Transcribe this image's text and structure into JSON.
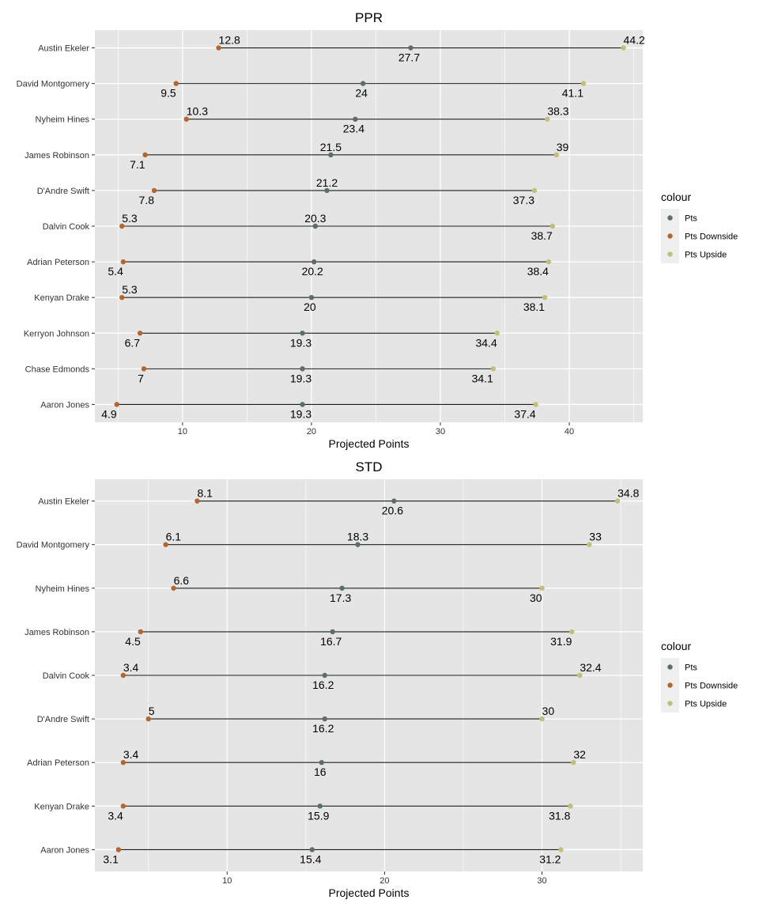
{
  "colors": {
    "panel_bg": "#e5e5e5",
    "grid": "#ffffff",
    "segment": "#1a1a1a",
    "pts": "#5b6e68",
    "downside": "#b5652f",
    "upside": "#c2bf7b",
    "legend_key_bg": "#efefef"
  },
  "chart_data": [
    {
      "type": "dumbbell",
      "title": "PPR",
      "xlabel": "Projected Points",
      "ylabel": "",
      "xlim": [
        3.2,
        45.7
      ],
      "xticks": [
        10,
        20,
        30,
        40
      ],
      "grid": true,
      "legend": {
        "title": "colour",
        "position": "right",
        "entries": [
          {
            "name": "Pts",
            "color_key": "pts"
          },
          {
            "name": "Pts Downside",
            "color_key": "downside"
          },
          {
            "name": "Pts Upside",
            "color_key": "upside"
          }
        ]
      },
      "categories": [
        "Austin Ekeler",
        "David Montgomery",
        "Nyheim Hines",
        "James Robinson",
        "D'Andre Swift",
        "Dalvin Cook",
        "Adrian Peterson",
        "Kenyan Drake",
        "Kerryon Johnson",
        "Chase Edmonds",
        "Aaron Jones"
      ],
      "pts": [
        27.7,
        24,
        23.4,
        21.5,
        21.2,
        20.3,
        20.2,
        20,
        19.3,
        19.3,
        19.3
      ],
      "downside": [
        12.8,
        9.5,
        10.3,
        7.1,
        7.8,
        5.3,
        5.4,
        5.3,
        6.7,
        7,
        4.9
      ],
      "upside": [
        44.2,
        41.1,
        38.3,
        39,
        37.3,
        38.7,
        38.4,
        38.1,
        34.4,
        34.1,
        37.4
      ],
      "label_pos": {
        "pts": [
          "below",
          "below",
          "below",
          "above",
          "above",
          "above",
          "below",
          "below",
          "below",
          "below",
          "below"
        ],
        "downside": [
          "above",
          "below",
          "above",
          "below",
          "below",
          "above",
          "below",
          "above",
          "below",
          "below",
          "below"
        ],
        "upside": [
          "above",
          "below",
          "above",
          "above",
          "below",
          "below",
          "below",
          "below",
          "below",
          "below",
          "below"
        ]
      }
    },
    {
      "type": "dumbbell",
      "title": "STD",
      "xlabel": "Projected Points",
      "ylabel": "",
      "xlim": [
        1.6,
        36.4
      ],
      "xticks": [
        10,
        20,
        30
      ],
      "grid": true,
      "legend": {
        "title": "colour",
        "position": "right",
        "entries": [
          {
            "name": "Pts",
            "color_key": "pts"
          },
          {
            "name": "Pts Downside",
            "color_key": "downside"
          },
          {
            "name": "Pts Upside",
            "color_key": "upside"
          }
        ]
      },
      "categories": [
        "Austin Ekeler",
        "David Montgomery",
        "Nyheim Hines",
        "James Robinson",
        "Dalvin Cook",
        "D'Andre Swift",
        "Adrian Peterson",
        "Kenyan Drake",
        "Aaron Jones"
      ],
      "pts": [
        20.6,
        18.3,
        17.3,
        16.7,
        16.2,
        16.2,
        16,
        15.9,
        15.4
      ],
      "downside": [
        8.1,
        6.1,
        6.6,
        4.5,
        3.4,
        5,
        3.4,
        3.4,
        3.1
      ],
      "upside": [
        34.8,
        33,
        30,
        31.9,
        32.4,
        30,
        32,
        31.8,
        31.2
      ],
      "label_pos": {
        "pts": [
          "below",
          "above",
          "below",
          "below",
          "below",
          "below",
          "below",
          "below",
          "below"
        ],
        "downside": [
          "above",
          "above",
          "above",
          "below",
          "above",
          "above",
          "above",
          "below",
          "below"
        ],
        "upside": [
          "above",
          "above",
          "below",
          "below",
          "above",
          "above",
          "above",
          "below",
          "below"
        ]
      }
    }
  ]
}
